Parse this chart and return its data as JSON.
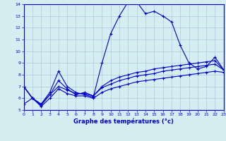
{
  "xlabel": "Graphe des températures (°c)",
  "bg_color": "#d6eef2",
  "grid_color": "#aaccdd",
  "line_color": "#0000cc",
  "xmin": 0,
  "xmax": 23,
  "ymin": 5,
  "ymax": 14,
  "x_ticks": [
    0,
    1,
    2,
    3,
    4,
    5,
    6,
    7,
    8,
    9,
    10,
    11,
    12,
    13,
    14,
    15,
    16,
    17,
    18,
    19,
    20,
    21,
    22,
    23
  ],
  "y_ticks": [
    5,
    6,
    7,
    8,
    9,
    10,
    11,
    12,
    13,
    14
  ],
  "series1_x": [
    0,
    1,
    2,
    3,
    4,
    5,
    6,
    7,
    8,
    9,
    10,
    11,
    12,
    13,
    14,
    15,
    16,
    17,
    18,
    19,
    20,
    21,
    22,
    23
  ],
  "series1_y": [
    7.0,
    6.0,
    5.5,
    6.5,
    8.3,
    7.0,
    6.5,
    6.3,
    6.1,
    9.0,
    11.5,
    13.0,
    14.2,
    14.2,
    13.2,
    13.4,
    13.0,
    12.5,
    10.5,
    9.0,
    8.5,
    8.7,
    9.5,
    8.4
  ],
  "series2_x": [
    0,
    1,
    2,
    3,
    4,
    5,
    6,
    7,
    8,
    9,
    10,
    11,
    12,
    13,
    14,
    15,
    16,
    17,
    18,
    19,
    20,
    21,
    22,
    23
  ],
  "series2_y": [
    7.0,
    6.0,
    5.5,
    6.3,
    7.5,
    6.8,
    6.3,
    6.5,
    6.2,
    7.0,
    7.5,
    7.8,
    8.0,
    8.2,
    8.3,
    8.5,
    8.6,
    8.7,
    8.8,
    8.9,
    9.0,
    9.1,
    9.2,
    8.4
  ],
  "series3_x": [
    0,
    1,
    2,
    3,
    4,
    5,
    6,
    7,
    8,
    9,
    10,
    11,
    12,
    13,
    14,
    15,
    16,
    17,
    18,
    19,
    20,
    21,
    22,
    23
  ],
  "series3_y": [
    7.0,
    6.0,
    5.4,
    6.3,
    7.0,
    6.7,
    6.4,
    6.4,
    6.2,
    6.9,
    7.2,
    7.5,
    7.7,
    7.9,
    8.0,
    8.1,
    8.3,
    8.4,
    8.5,
    8.6,
    8.7,
    8.8,
    8.9,
    8.4
  ],
  "series4_x": [
    0,
    1,
    2,
    3,
    4,
    5,
    6,
    7,
    8,
    9,
    10,
    11,
    12,
    13,
    14,
    15,
    16,
    17,
    18,
    19,
    20,
    21,
    22,
    23
  ],
  "series4_y": [
    5.5,
    6.0,
    5.3,
    6.0,
    6.8,
    6.4,
    6.2,
    6.2,
    6.0,
    6.5,
    6.8,
    7.0,
    7.2,
    7.4,
    7.5,
    7.6,
    7.7,
    7.8,
    7.9,
    8.0,
    8.1,
    8.2,
    8.3,
    8.2
  ]
}
